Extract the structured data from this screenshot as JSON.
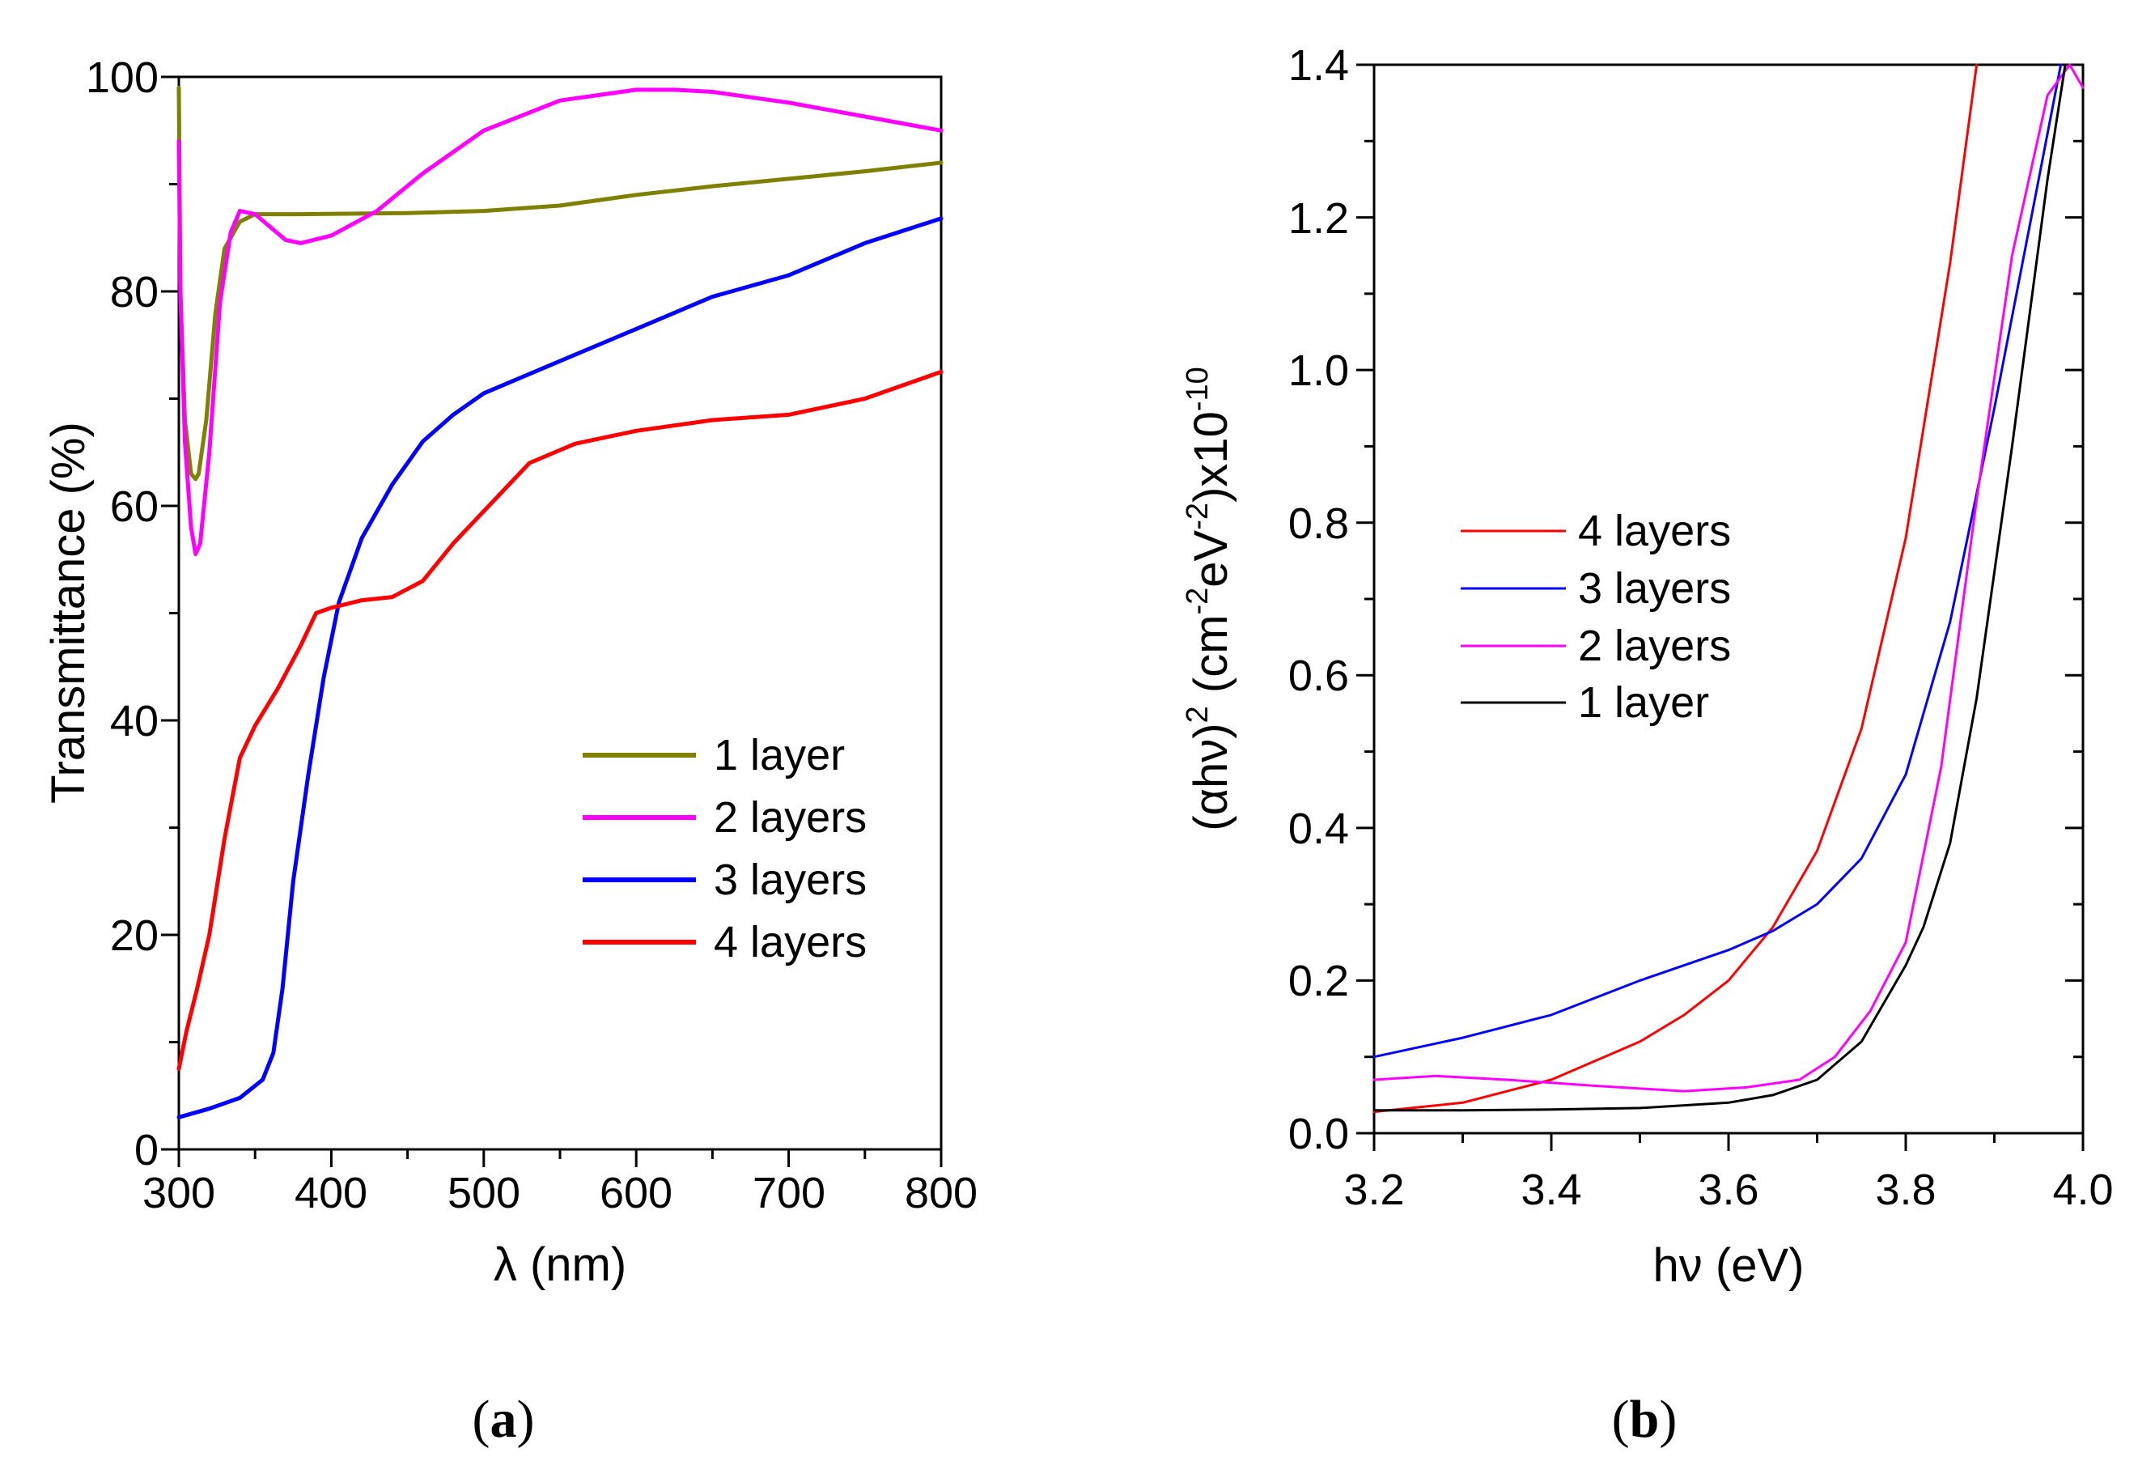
{
  "chart_data": [
    {
      "type": "line",
      "panel_label": {
        "open": "(",
        "letter": "a",
        "close": ")"
      },
      "xlabel": "λ (nm)",
      "ylabel": "Transmittance (%)",
      "xlim": [
        300,
        800
      ],
      "ylim": [
        0,
        100
      ],
      "x_ticks": [
        300,
        400,
        500,
        600,
        700,
        800
      ],
      "y_ticks": [
        0,
        20,
        40,
        60,
        80,
        100
      ],
      "legend_position": "lower-right",
      "series": [
        {
          "name": "1 layer",
          "color": "#808000",
          "x": [
            300,
            301,
            304,
            308,
            311,
            313,
            318,
            324,
            330,
            340,
            350,
            380,
            450,
            500,
            550,
            600,
            650,
            700,
            750,
            800
          ],
          "y": [
            99,
            80,
            68,
            63,
            62.5,
            63,
            68,
            78,
            84,
            86.5,
            87.2,
            87.2,
            87.3,
            87.5,
            88.0,
            89.0,
            89.8,
            90.5,
            91.2,
            92.0
          ]
        },
        {
          "name": "2 layers",
          "color": "#ff00ff",
          "x": [
            300,
            301,
            304,
            308,
            311,
            314,
            320,
            327,
            334,
            340,
            350,
            360,
            370,
            380,
            400,
            430,
            460,
            500,
            550,
            600,
            625,
            650,
            700,
            750,
            800
          ],
          "y": [
            94,
            80,
            66,
            58,
            55.5,
            56.5,
            65,
            79,
            85.5,
            87.5,
            87.2,
            86,
            84.8,
            84.5,
            85.2,
            87.5,
            91.0,
            95.0,
            97.8,
            98.8,
            98.8,
            98.6,
            97.6,
            96.3,
            95.0
          ]
        },
        {
          "name": "3 layers",
          "color": "#0000ff",
          "x": [
            300,
            320,
            340,
            355,
            362,
            368,
            375,
            385,
            395,
            405,
            420,
            440,
            460,
            480,
            500,
            550,
            600,
            650,
            700,
            750,
            800
          ],
          "y": [
            3,
            3.8,
            4.8,
            6.5,
            9,
            15,
            25,
            35,
            44,
            51,
            57,
            62,
            66,
            68.5,
            70.5,
            73.5,
            76.5,
            79.5,
            81.5,
            84.5,
            86.8
          ]
        },
        {
          "name": "4 layers",
          "color": "#ff0000",
          "x": [
            300,
            305,
            312,
            320,
            330,
            340,
            350,
            365,
            380,
            390,
            400,
            420,
            440,
            460,
            480,
            500,
            530,
            560,
            600,
            650,
            700,
            750,
            800
          ],
          "y": [
            7.5,
            11,
            15,
            20,
            29,
            36.5,
            39.5,
            43,
            47,
            50,
            50.5,
            51.2,
            51.5,
            53,
            56.5,
            59.5,
            64,
            65.8,
            67,
            68,
            68.5,
            70,
            72.5
          ]
        }
      ]
    },
    {
      "type": "line",
      "panel_label": {
        "open": "(",
        "letter": "b",
        "close": ")"
      },
      "xlabel": "hν (eV)",
      "ylabel_parts": {
        "a": "(αhν)",
        "b": "2",
        "c": " (cm",
        "d": "-2",
        "e": "eV",
        "f": "-2",
        "g": ")x10",
        "h": "-10"
      },
      "xlim": [
        3.2,
        4.0
      ],
      "ylim": [
        0,
        1.4
      ],
      "x_ticks": [
        "3.2",
        "3.4",
        "3.6",
        "3.8",
        "4.0"
      ],
      "y_ticks": [
        "0.0",
        "0.2",
        "0.4",
        "0.6",
        "0.8",
        "1.0",
        "1.2",
        "1.4"
      ],
      "legend_position": "center-left",
      "series": [
        {
          "name": "4 layers",
          "color": "#ff0000",
          "x": [
            3.2,
            3.3,
            3.4,
            3.5,
            3.55,
            3.6,
            3.65,
            3.7,
            3.75,
            3.8,
            3.85,
            3.88
          ],
          "y": [
            0.028,
            0.04,
            0.07,
            0.12,
            0.155,
            0.2,
            0.27,
            0.37,
            0.53,
            0.78,
            1.14,
            1.4
          ]
        },
        {
          "name": "3 layers",
          "color": "#0000ff",
          "x": [
            3.2,
            3.3,
            3.4,
            3.5,
            3.6,
            3.65,
            3.7,
            3.75,
            3.8,
            3.85,
            3.9,
            3.95,
            3.975
          ],
          "y": [
            0.1,
            0.125,
            0.155,
            0.2,
            0.24,
            0.265,
            0.3,
            0.36,
            0.47,
            0.67,
            0.95,
            1.25,
            1.4
          ]
        },
        {
          "name": "2 layers",
          "color": "#ff00ff",
          "x": [
            3.2,
            3.27,
            3.35,
            3.45,
            3.55,
            3.62,
            3.68,
            3.72,
            3.76,
            3.8,
            3.84,
            3.88,
            3.92,
            3.96,
            3.985,
            4.0
          ],
          "y": [
            0.07,
            0.075,
            0.07,
            0.062,
            0.055,
            0.06,
            0.07,
            0.1,
            0.16,
            0.25,
            0.48,
            0.83,
            1.15,
            1.36,
            1.4,
            1.37
          ]
        },
        {
          "name": "1 layer",
          "color": "#000000",
          "x": [
            3.2,
            3.3,
            3.4,
            3.5,
            3.6,
            3.65,
            3.7,
            3.75,
            3.8,
            3.82,
            3.85,
            3.88,
            3.92,
            3.96,
            3.98
          ],
          "y": [
            0.03,
            0.03,
            0.031,
            0.033,
            0.04,
            0.05,
            0.07,
            0.12,
            0.22,
            0.27,
            0.38,
            0.57,
            0.9,
            1.25,
            1.4
          ]
        }
      ]
    }
  ]
}
